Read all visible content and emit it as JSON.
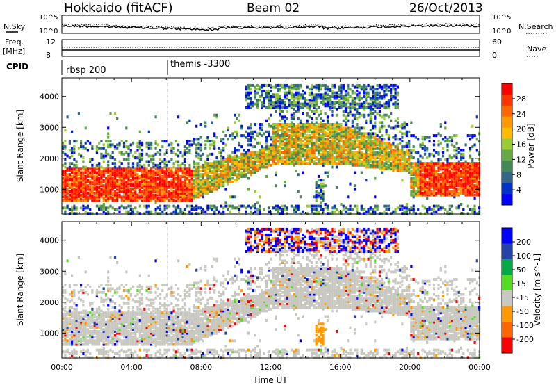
{
  "header": {
    "station": "Hokkaido (fitACF)",
    "beam": "Beam 02",
    "date": "26/Oct/2013"
  },
  "noise_panel": {
    "left_label": "N.Sky",
    "right_label": "N.Search",
    "left_ticks": [
      "10^5",
      "10^0"
    ],
    "right_ticks": [
      "10^5",
      "10^0"
    ]
  },
  "freq_panel": {
    "left_label_1": "Freq.",
    "left_label_2": "[MHz]",
    "left_ticks": [
      "12",
      "8"
    ],
    "right_label": "Nave",
    "right_ticks": [
      "60",
      "0"
    ]
  },
  "cpid_panel": {
    "label": "CPID",
    "modes": [
      {
        "name": "rbsp 200",
        "start_hour": 0
      },
      {
        "name": "themis -3300",
        "start_hour": 6
      }
    ]
  },
  "chart_data": [
    {
      "type": "heatmap",
      "panel": "power",
      "ylabel": "Slant Range [km]",
      "yticks": [
        1000,
        2000,
        3000,
        4000
      ],
      "ylim": [
        200,
        4600
      ],
      "xlim": [
        0,
        24
      ],
      "colorbar": {
        "label": "Power [dB]",
        "ticks": [
          "28",
          "24",
          "20",
          "16",
          "12",
          "8",
          "4"
        ],
        "colors": [
          "#ff0000",
          "#ff3300",
          "#ff6600",
          "#ff9900",
          "#ffbb00",
          "#99cc33",
          "#66aa44",
          "#448855",
          "#336688",
          "#0033cc",
          "#0000ff"
        ]
      },
      "echo_regions": [
        {
          "hours": [
            0,
            7.8
          ],
          "range_km": [
            600,
            1700
          ],
          "level": "high"
        },
        {
          "hours": [
            7.8,
            12
          ],
          "range_km": [
            1400,
            2500
          ],
          "level": "mid"
        },
        {
          "hours": [
            12,
            20
          ],
          "range_km": [
            1800,
            3300
          ],
          "level": "mid"
        },
        {
          "hours": [
            20,
            24
          ],
          "range_km": [
            800,
            1900
          ],
          "level": "high"
        },
        {
          "hours": [
            10,
            19
          ],
          "range_km": [
            3600,
            4300
          ],
          "level": "low"
        }
      ]
    },
    {
      "type": "heatmap",
      "panel": "velocity",
      "ylabel": "Slant Range [km]",
      "yticks": [
        1000,
        2000,
        3000,
        4000
      ],
      "ylim": [
        200,
        4600
      ],
      "xlim": [
        0,
        24
      ],
      "xlabel": "Time UT",
      "xticks": [
        "00:00",
        "04:00",
        "08:00",
        "12:00",
        "16:00",
        "20:00",
        "00:00"
      ],
      "colorbar": {
        "label": "Velocity [m s^-1]",
        "ticks": [
          "200",
          "100",
          "50",
          "15",
          "-15",
          "-50",
          "-100",
          "-200"
        ],
        "colors": [
          "#0000ff",
          "#2244aa",
          "#00aa44",
          "#55dd22",
          "#c8c8c0",
          "#ff9900",
          "#ff6600",
          "#ff0000"
        ]
      }
    }
  ]
}
